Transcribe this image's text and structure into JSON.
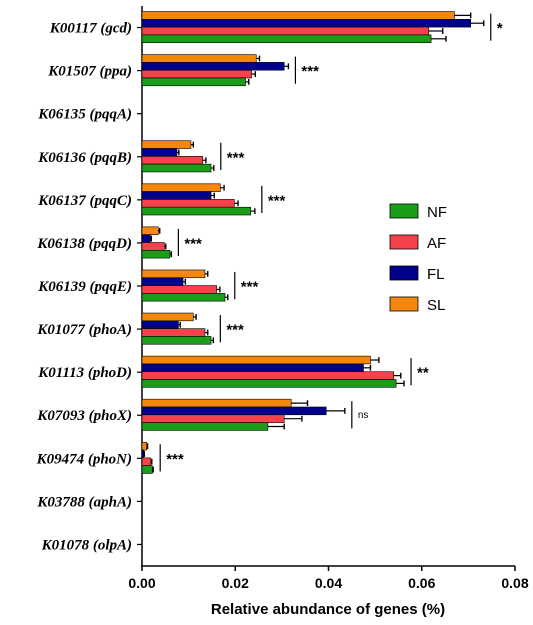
{
  "chart_data": {
    "type": "bar",
    "orientation": "horizontal",
    "categories": [
      "K00117 (gcd)",
      "K01507 (ppa)",
      "K06135 (pqqA)",
      "K06136 (pqqB)",
      "K06137 (pqqC)",
      "K06138 (pqqD)",
      "K06139 (pqqE)",
      "K01077 (phoA)",
      "K01113 (phoD)",
      "K07093 (phoX)",
      "K09474 (phoN)",
      "K03788 (aphA)",
      "K01078 (olpA)"
    ],
    "series": [
      {
        "name": "SL",
        "color": "#F5870F",
        "values": [
          0.067,
          0.0245,
          0,
          0.0105,
          0.0168,
          0.0035,
          0.0135,
          0.011,
          0.049,
          0.032,
          0.001,
          0,
          0
        ],
        "errors": [
          0.0035,
          0.0007,
          0,
          0.0005,
          0.0008,
          0.0003,
          0.0006,
          0.0006,
          0.0018,
          0.0035,
          0.0002,
          0,
          0
        ]
      },
      {
        "name": "FL",
        "color": "#00008B",
        "values": [
          0.0705,
          0.0305,
          0,
          0.0075,
          0.0148,
          0.0018,
          0.0088,
          0.0078,
          0.0475,
          0.0395,
          0.0004,
          0,
          0
        ],
        "errors": [
          0.0028,
          0.0009,
          0,
          0.0004,
          0.0007,
          0.0002,
          0.0005,
          0.0004,
          0.0015,
          0.004,
          0.0001,
          0,
          0
        ]
      },
      {
        "name": "AF",
        "color": "#F5424B",
        "values": [
          0.0615,
          0.0235,
          0,
          0.013,
          0.0198,
          0.0048,
          0.016,
          0.0135,
          0.054,
          0.0305,
          0.0019,
          0,
          0
        ],
        "errors": [
          0.003,
          0.0008,
          0,
          0.0007,
          0.0008,
          0.0003,
          0.0007,
          0.0006,
          0.0015,
          0.0038,
          0.0002,
          0,
          0
        ]
      },
      {
        "name": "NF",
        "color": "#1A9E1A",
        "values": [
          0.062,
          0.0222,
          0,
          0.0148,
          0.0233,
          0.006,
          0.0178,
          0.0148,
          0.0545,
          0.027,
          0.0022,
          0,
          0
        ],
        "errors": [
          0.0032,
          0.0007,
          0,
          0.0006,
          0.0009,
          0.0003,
          0.0006,
          0.0005,
          0.0017,
          0.0035,
          0.0002,
          0,
          0
        ]
      }
    ],
    "significance": [
      "*",
      "***",
      "",
      "***",
      "***",
      "***",
      "***",
      "***",
      "**",
      "ns",
      "***",
      "",
      ""
    ],
    "xlabel": "Relative abundance of genes (%)",
    "ylabel": "",
    "xlim": [
      0,
      0.08
    ],
    "xticks": [
      "0.00",
      "0.02",
      "0.04",
      "0.06",
      "0.08"
    ],
    "legend": {
      "placement": "right",
      "entries": [
        "NF",
        "AF",
        "FL",
        "SL"
      ]
    },
    "grid": false
  }
}
